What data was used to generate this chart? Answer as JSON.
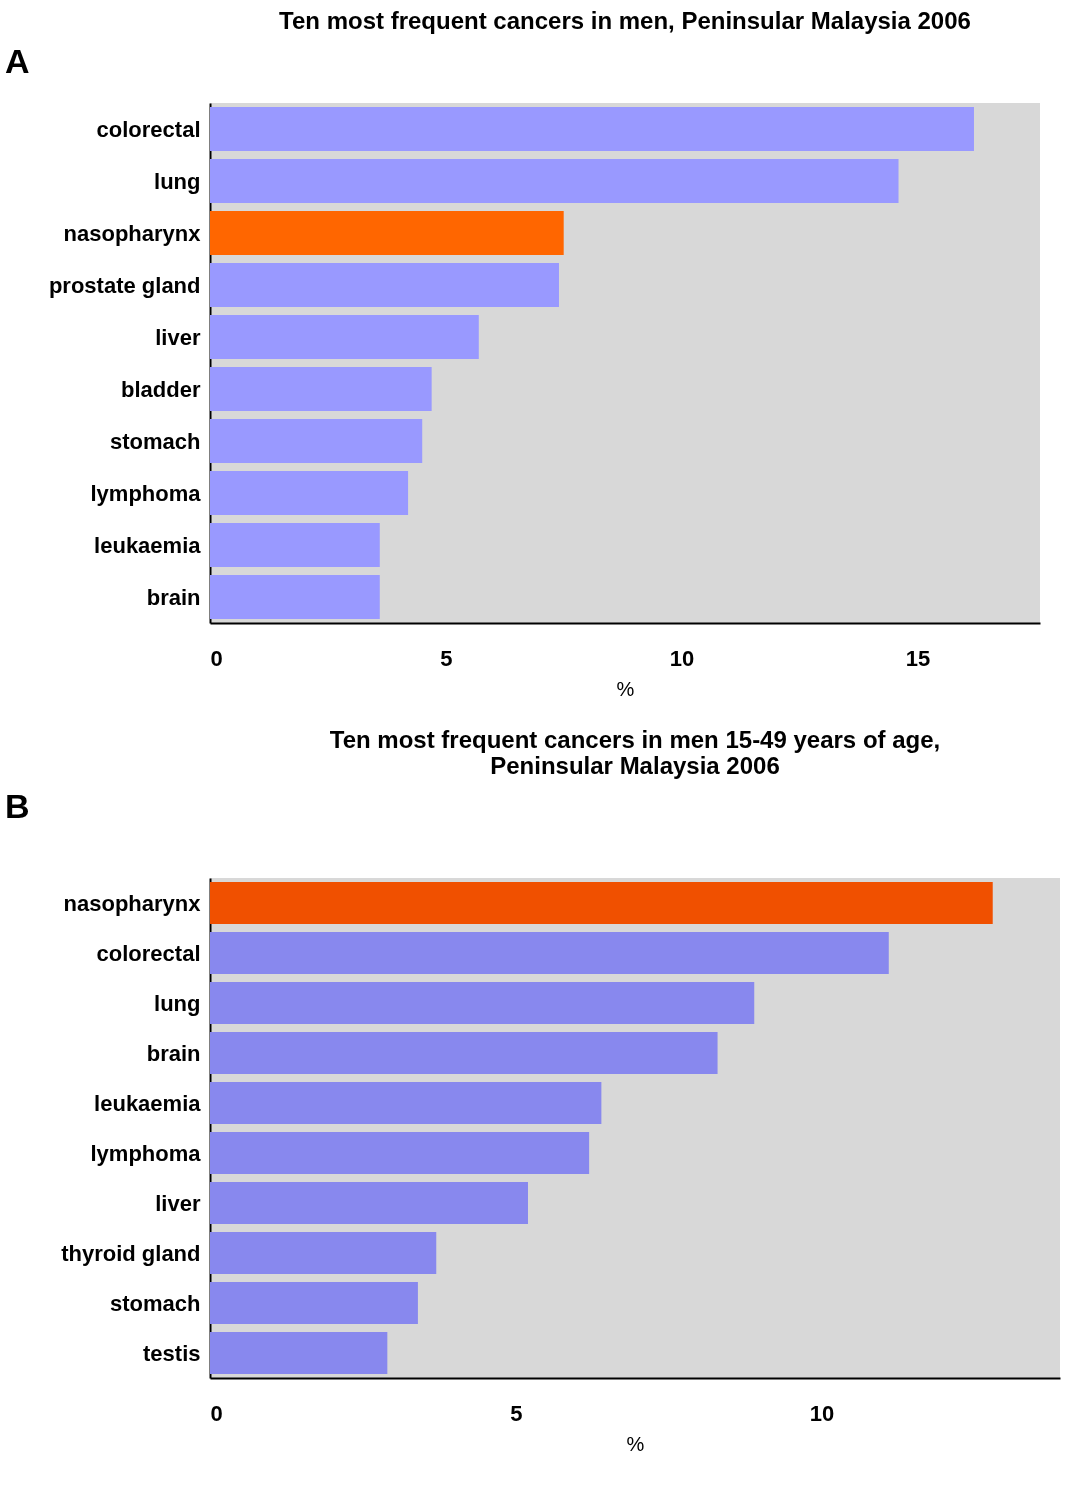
{
  "chart_data": [
    {
      "type": "bar",
      "orientation": "horizontal",
      "title": "Ten most frequent cancers in men, Peninsular Malaysia 2006",
      "annotations": [
        "A"
      ],
      "categories": [
        "colorectal",
        "lung",
        "nasopharynx",
        "prostate gland",
        "liver",
        "bladder",
        "stomach",
        "lymphoma",
        "leukaemia",
        "brain"
      ],
      "values": [
        16.2,
        14.6,
        7.5,
        7.4,
        5.7,
        4.7,
        4.5,
        4.2,
        3.6,
        3.6
      ],
      "colors": [
        "#9999ff",
        "#9999ff",
        "#ff6600",
        "#9999ff",
        "#9999ff",
        "#9999ff",
        "#9999ff",
        "#9999ff",
        "#9999ff",
        "#9999ff"
      ],
      "xlim": [
        0,
        17.6
      ],
      "xticks": [
        0,
        5,
        10,
        15
      ],
      "xlabel": "%"
    },
    {
      "type": "bar",
      "orientation": "horizontal",
      "title": "Ten most frequent cancers in men 15-49 years of age,\nPeninsular Malaysia 2006",
      "annotations": [
        "B"
      ],
      "categories": [
        "nasopharynx",
        "colorectal",
        "lung",
        "brain",
        "leukaemia",
        "lymphoma",
        "liver",
        "thyroid gland",
        "stomach",
        "testis"
      ],
      "values": [
        12.8,
        11.1,
        8.9,
        8.3,
        6.4,
        6.2,
        5.2,
        3.7,
        3.4,
        2.9
      ],
      "colors": [
        "#f05000",
        "#8888ee",
        "#8888ee",
        "#8888ee",
        "#8888ee",
        "#8888ee",
        "#8888ee",
        "#8888ee",
        "#8888ee",
        "#8888ee"
      ],
      "xlim": [
        0,
        13.9
      ],
      "xticks": [
        0,
        5,
        10
      ],
      "xlabel": "%"
    }
  ]
}
